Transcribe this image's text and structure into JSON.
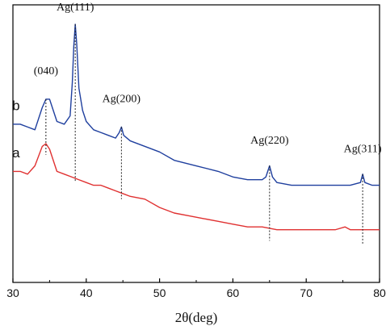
{
  "chart_data": {
    "type": "line",
    "xlabel": "2θ(deg)",
    "ylabel": "",
    "xlim": [
      30,
      80
    ],
    "ylim": [
      0,
      100
    ],
    "x_ticks": [
      30,
      40,
      50,
      60,
      70,
      80
    ],
    "grid": false,
    "legend": "none",
    "series": [
      {
        "name": "b",
        "color": "#1f3f9e",
        "points": [
          [
            30.0,
            57
          ],
          [
            31.0,
            57
          ],
          [
            32.0,
            56
          ],
          [
            33.0,
            55
          ],
          [
            34.0,
            63
          ],
          [
            34.5,
            66
          ],
          [
            35.0,
            66
          ],
          [
            35.5,
            62
          ],
          [
            36.0,
            58
          ],
          [
            37.0,
            57
          ],
          [
            37.8,
            60
          ],
          [
            38.1,
            72
          ],
          [
            38.3,
            85
          ],
          [
            38.5,
            93
          ],
          [
            38.7,
            86
          ],
          [
            39.0,
            70
          ],
          [
            39.5,
            62
          ],
          [
            40.0,
            58
          ],
          [
            41.0,
            55
          ],
          [
            42.0,
            54
          ],
          [
            43.0,
            53
          ],
          [
            44.0,
            52
          ],
          [
            44.5,
            54
          ],
          [
            44.8,
            56
          ],
          [
            45.1,
            53
          ],
          [
            46.0,
            51
          ],
          [
            48.0,
            49
          ],
          [
            50.0,
            47
          ],
          [
            52.0,
            44
          ],
          [
            55.0,
            42
          ],
          [
            58.0,
            40
          ],
          [
            60.0,
            38
          ],
          [
            62.0,
            37
          ],
          [
            64.0,
            37
          ],
          [
            64.5,
            38
          ],
          [
            65.0,
            42
          ],
          [
            65.4,
            38
          ],
          [
            66.0,
            36
          ],
          [
            68.0,
            35
          ],
          [
            70.0,
            35
          ],
          [
            72.0,
            35
          ],
          [
            74.0,
            35
          ],
          [
            76.0,
            35
          ],
          [
            77.4,
            36
          ],
          [
            77.7,
            39
          ],
          [
            78.0,
            36
          ],
          [
            79.0,
            35
          ],
          [
            80.0,
            35
          ]
        ]
      },
      {
        "name": "a",
        "color": "#e03131",
        "points": [
          [
            30.0,
            40
          ],
          [
            31.0,
            40
          ],
          [
            32.0,
            39
          ],
          [
            33.0,
            42
          ],
          [
            34.0,
            49
          ],
          [
            34.5,
            50
          ],
          [
            35.0,
            48
          ],
          [
            35.5,
            44
          ],
          [
            36.0,
            40
          ],
          [
            37.0,
            39
          ],
          [
            38.0,
            38
          ],
          [
            39.0,
            37
          ],
          [
            40.0,
            36
          ],
          [
            41.0,
            35
          ],
          [
            42.0,
            35
          ],
          [
            43.0,
            34
          ],
          [
            44.0,
            33
          ],
          [
            45.0,
            32
          ],
          [
            46.0,
            31
          ],
          [
            48.0,
            30
          ],
          [
            50.0,
            27
          ],
          [
            52.0,
            25
          ],
          [
            54.0,
            24
          ],
          [
            56.0,
            23
          ],
          [
            58.0,
            22
          ],
          [
            60.0,
            21
          ],
          [
            62.0,
            20
          ],
          [
            64.0,
            20
          ],
          [
            66.0,
            19
          ],
          [
            68.0,
            19
          ],
          [
            70.0,
            19
          ],
          [
            72.0,
            19
          ],
          [
            74.0,
            19
          ],
          [
            75.3,
            20
          ],
          [
            76.0,
            19
          ],
          [
            78.0,
            19
          ],
          [
            80.0,
            19
          ]
        ]
      }
    ],
    "curve_labels": [
      {
        "text": "b",
        "x": 31.0,
        "y": 62
      },
      {
        "text": "a",
        "x": 31.0,
        "y": 45
      }
    ],
    "annotations": [
      {
        "text": "(040)",
        "x": 34.5,
        "line_top": 66,
        "line_bottom": 46,
        "label_y": 75
      },
      {
        "text": "Ag(111)",
        "x": 38.5,
        "line_top": 93,
        "line_bottom": 36,
        "label_y": 98
      },
      {
        "text": "Ag(200)",
        "x": 44.8,
        "line_top": 56,
        "line_bottom": 30,
        "label_y": 65
      },
      {
        "text": "Ag(220)",
        "x": 65.0,
        "line_top": 42,
        "line_bottom": 15,
        "label_y": 50
      },
      {
        "text": "Ag(311)",
        "x": 77.7,
        "line_top": 39,
        "line_bottom": 14,
        "label_y": 47
      }
    ]
  }
}
